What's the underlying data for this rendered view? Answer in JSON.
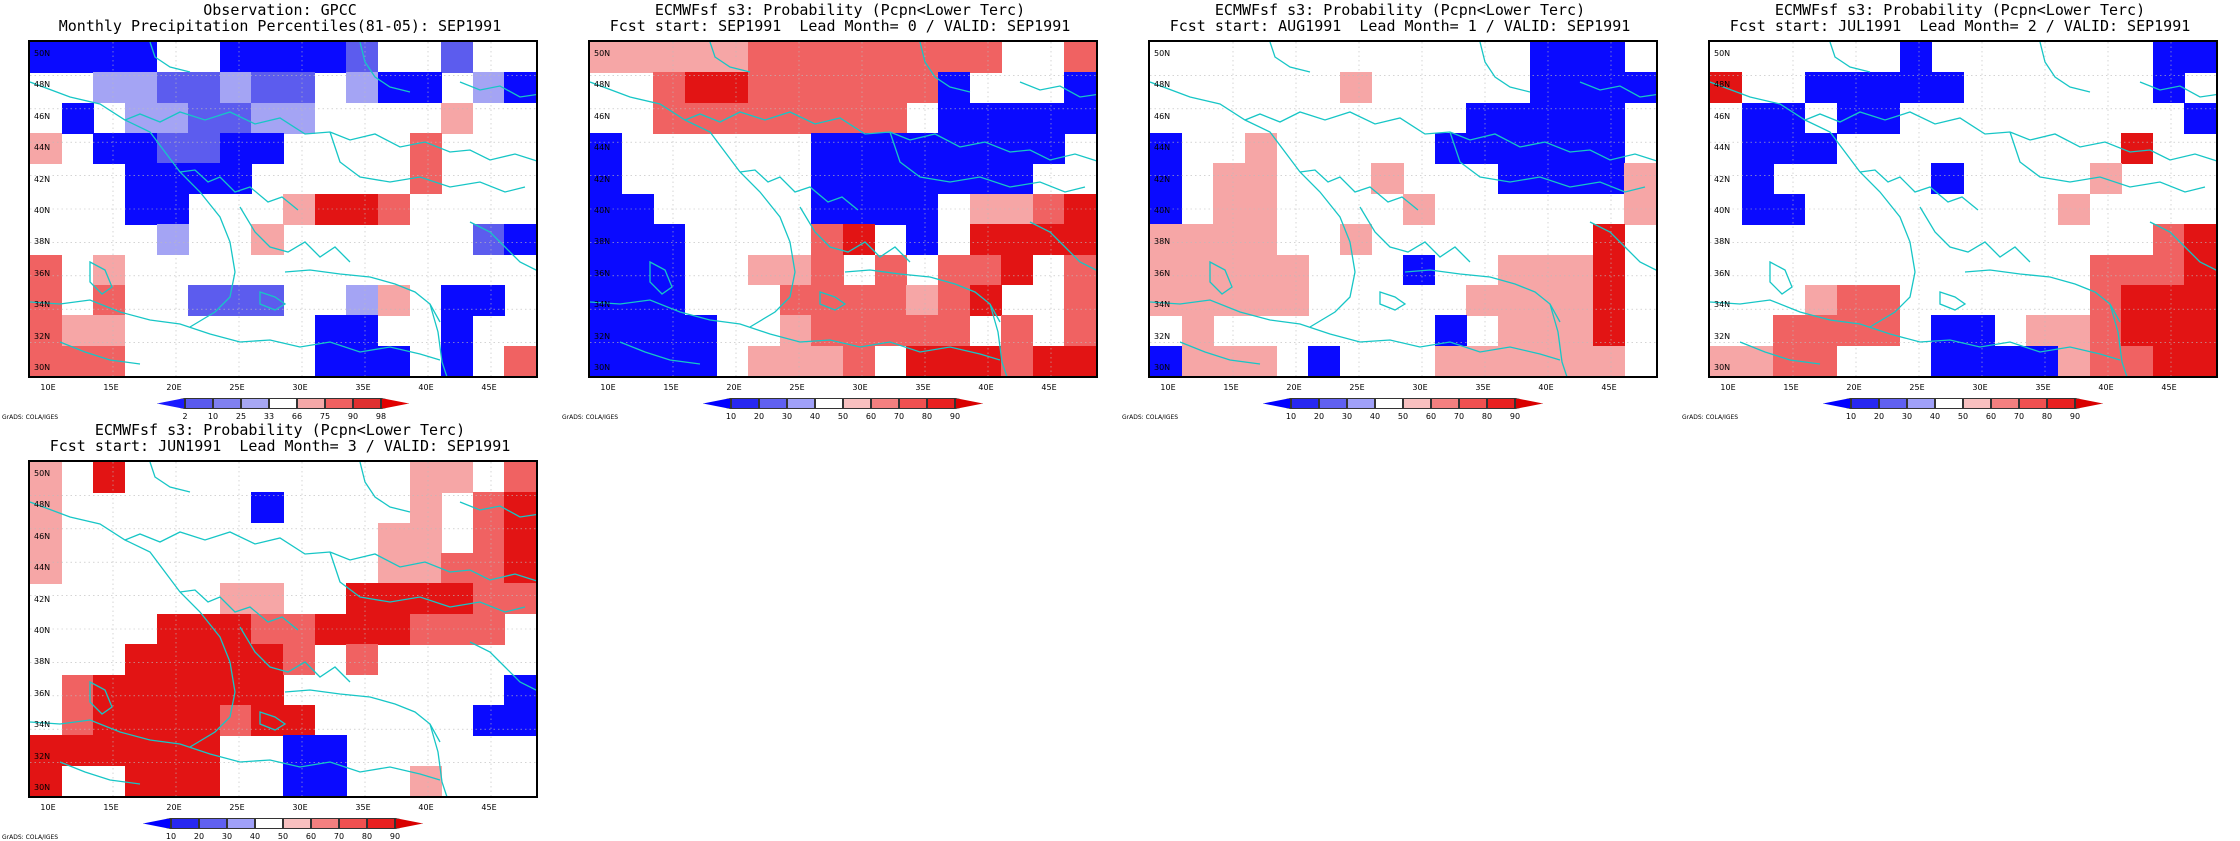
{
  "lat_labels": [
    "50N",
    "48N",
    "46N",
    "44N",
    "42N",
    "40N",
    "38N",
    "36N",
    "34N",
    "32N",
    "30N"
  ],
  "lon_labels": [
    "10E",
    "15E",
    "20E",
    "25E",
    "30E",
    "35E",
    "40E",
    "45E"
  ],
  "credit": "GrADS: COLA/IGES",
  "colors": {
    "coast": "#17c6c6",
    "frame": "#000000"
  },
  "panels": [
    {
      "id": "obs",
      "title1": "Observation: GPCC",
      "title2": "Monthly Precipitation Percentiles(81-05): SEP1991",
      "colorbar": {
        "colors": [
          "#1a1aff",
          "#5a5aee",
          "#8080f0",
          "#a8a8f4",
          "#ffffff",
          "#f4a8a8",
          "#f06060",
          "#e03030",
          "#e00000"
        ],
        "labels": [
          "2",
          "10",
          "25",
          "33",
          "66",
          "75",
          "90",
          "98"
        ]
      },
      "grid": [
        [
          "B",
          "B",
          "B",
          "B",
          "W",
          "W",
          "B",
          "B",
          "B",
          "B",
          "M",
          "W",
          "W",
          "M",
          "W",
          "W"
        ],
        [
          "W",
          "W",
          "L",
          "L",
          "M",
          "M",
          "L",
          "M",
          "M",
          "W",
          "L",
          "B",
          "B",
          "W",
          "L",
          "B"
        ],
        [
          "W",
          "B",
          "W",
          "L",
          "L",
          "M",
          "M",
          "L",
          "L",
          "W",
          "W",
          "W",
          "W",
          "P",
          "W",
          "W"
        ],
        [
          "P",
          "W",
          "B",
          "B",
          "M",
          "M",
          "B",
          "B",
          "W",
          "W",
          "W",
          "W",
          "r",
          "W",
          "W",
          "W"
        ],
        [
          "W",
          "W",
          "W",
          "B",
          "B",
          "B",
          "B",
          "W",
          "W",
          "W",
          "W",
          "W",
          "r",
          "W",
          "W",
          "W"
        ],
        [
          "W",
          "W",
          "W",
          "B",
          "B",
          "W",
          "W",
          "W",
          "P",
          "R",
          "R",
          "r",
          "W",
          "W",
          "W",
          "W"
        ],
        [
          "W",
          "W",
          "W",
          "W",
          "L",
          "W",
          "W",
          "P",
          "W",
          "W",
          "W",
          "W",
          "W",
          "W",
          "M",
          "B"
        ],
        [
          "r",
          "W",
          "P",
          "W",
          "W",
          "W",
          "W",
          "W",
          "W",
          "W",
          "W",
          "W",
          "W",
          "W",
          "W",
          "W"
        ],
        [
          "r",
          "W",
          "r",
          "W",
          "W",
          "M",
          "M",
          "M",
          "W",
          "W",
          "L",
          "P",
          "W",
          "B",
          "B",
          "W"
        ],
        [
          "r",
          "P",
          "P",
          "W",
          "W",
          "W",
          "W",
          "W",
          "W",
          "B",
          "B",
          "W",
          "W",
          "B",
          "W",
          "W"
        ],
        [
          "r",
          "r",
          "r",
          "W",
          "W",
          "W",
          "W",
          "W",
          "W",
          "B",
          "B",
          "B",
          "W",
          "B",
          "W",
          "r"
        ]
      ]
    },
    {
      "id": "lead0",
      "title1": "ECMWFsf s3: Probability (Pcpn<Lower Terc)",
      "title2": "Fcst start: SEP1991  Lead Month= 0 / VALID: SEP1991",
      "colorbar": {
        "colors": [
          "#0000ff",
          "#2828f0",
          "#6060f0",
          "#a0a0f8",
          "#ffffff",
          "#f8c0c0",
          "#f48080",
          "#f05050",
          "#e82020",
          "#d80000"
        ],
        "labels": [
          "10",
          "20",
          "30",
          "40",
          "50",
          "60",
          "70",
          "80",
          "90"
        ]
      },
      "grid": [
        [
          "P",
          "P",
          "P",
          "P",
          "P",
          "r",
          "r",
          "r",
          "r",
          "r",
          "r",
          "r",
          "r",
          "W",
          "W",
          "r"
        ],
        [
          "W",
          "W",
          "r",
          "R",
          "R",
          "r",
          "r",
          "r",
          "r",
          "r",
          "r",
          "B",
          "W",
          "W",
          "W",
          "B"
        ],
        [
          "W",
          "W",
          "r",
          "r",
          "r",
          "r",
          "r",
          "r",
          "r",
          "r",
          "W",
          "B",
          "B",
          "B",
          "B",
          "B"
        ],
        [
          "B",
          "W",
          "W",
          "W",
          "W",
          "W",
          "W",
          "B",
          "B",
          "B",
          "B",
          "B",
          "B",
          "B",
          "B",
          "W"
        ],
        [
          "B",
          "W",
          "W",
          "W",
          "W",
          "W",
          "W",
          "B",
          "B",
          "B",
          "B",
          "B",
          "B",
          "B",
          "W",
          "W"
        ],
        [
          "B",
          "B",
          "W",
          "W",
          "W",
          "W",
          "W",
          "B",
          "B",
          "B",
          "B",
          "W",
          "P",
          "P",
          "r",
          "R"
        ],
        [
          "B",
          "B",
          "B",
          "W",
          "W",
          "W",
          "W",
          "r",
          "R",
          "W",
          "B",
          "W",
          "R",
          "R",
          "R",
          "R"
        ],
        [
          "B",
          "B",
          "B",
          "W",
          "W",
          "P",
          "P",
          "r",
          "W",
          "r",
          "W",
          "r",
          "r",
          "R",
          "W",
          "r"
        ],
        [
          "B",
          "B",
          "B",
          "W",
          "W",
          "W",
          "r",
          "r",
          "r",
          "r",
          "P",
          "r",
          "R",
          "W",
          "W",
          "r"
        ],
        [
          "B",
          "B",
          "B",
          "B",
          "W",
          "W",
          "P",
          "r",
          "r",
          "r",
          "r",
          "r",
          "W",
          "r",
          "W",
          "r"
        ],
        [
          "B",
          "B",
          "B",
          "B",
          "W",
          "P",
          "P",
          "P",
          "r",
          "W",
          "R",
          "R",
          "R",
          "r",
          "R",
          "R"
        ]
      ]
    },
    {
      "id": "lead1",
      "title1": "ECMWFsf s3: Probability (Pcpn<Lower Terc)",
      "title2": "Fcst start: AUG1991  Lead Month= 1 / VALID: SEP1991",
      "colorbar": {
        "colors": [
          "#0000ff",
          "#2828f0",
          "#6060f0",
          "#a0a0f8",
          "#ffffff",
          "#f8c0c0",
          "#f48080",
          "#f05050",
          "#e82020",
          "#d80000"
        ],
        "labels": [
          "10",
          "20",
          "30",
          "40",
          "50",
          "60",
          "70",
          "80",
          "90"
        ]
      },
      "grid": [
        [
          "W",
          "W",
          "W",
          "W",
          "W",
          "W",
          "W",
          "W",
          "W",
          "W",
          "W",
          "W",
          "B",
          "B",
          "B",
          "W"
        ],
        [
          "W",
          "W",
          "W",
          "W",
          "W",
          "W",
          "P",
          "W",
          "W",
          "W",
          "W",
          "W",
          "B",
          "B",
          "B",
          "B"
        ],
        [
          "W",
          "W",
          "W",
          "W",
          "W",
          "W",
          "W",
          "W",
          "W",
          "W",
          "B",
          "B",
          "B",
          "B",
          "B",
          "W"
        ],
        [
          "B",
          "W",
          "W",
          "P",
          "W",
          "W",
          "W",
          "W",
          "W",
          "B",
          "B",
          "B",
          "B",
          "B",
          "B",
          "W"
        ],
        [
          "B",
          "W",
          "P",
          "P",
          "W",
          "W",
          "W",
          "P",
          "W",
          "W",
          "W",
          "B",
          "B",
          "B",
          "B",
          "P"
        ],
        [
          "B",
          "W",
          "P",
          "P",
          "W",
          "W",
          "W",
          "W",
          "P",
          "W",
          "W",
          "W",
          "W",
          "W",
          "W",
          "P"
        ],
        [
          "P",
          "P",
          "P",
          "P",
          "W",
          "W",
          "P",
          "W",
          "W",
          "W",
          "W",
          "W",
          "W",
          "W",
          "R",
          "W"
        ],
        [
          "P",
          "P",
          "P",
          "P",
          "P",
          "W",
          "W",
          "W",
          "B",
          "W",
          "W",
          "P",
          "P",
          "P",
          "R",
          "W"
        ],
        [
          "P",
          "P",
          "P",
          "P",
          "P",
          "W",
          "W",
          "W",
          "W",
          "W",
          "P",
          "P",
          "P",
          "P",
          "R",
          "W"
        ],
        [
          "W",
          "P",
          "W",
          "W",
          "W",
          "W",
          "W",
          "W",
          "W",
          "B",
          "W",
          "P",
          "P",
          "P",
          "R",
          "W"
        ],
        [
          "B",
          "P",
          "P",
          "P",
          "W",
          "B",
          "W",
          "W",
          "W",
          "P",
          "P",
          "P",
          "P",
          "P",
          "P",
          "W"
        ]
      ]
    },
    {
      "id": "lead2",
      "title1": "ECMWFsf s3: Probability (Pcpn<Lower Terc)",
      "title2": "Fcst start: JUL1991  Lead Month= 2 / VALID: SEP1991",
      "colorbar": {
        "colors": [
          "#0000ff",
          "#2828f0",
          "#6060f0",
          "#a0a0f8",
          "#ffffff",
          "#f8c0c0",
          "#f48080",
          "#f05050",
          "#e82020",
          "#d80000"
        ],
        "labels": [
          "10",
          "20",
          "30",
          "40",
          "50",
          "60",
          "70",
          "80",
          "90"
        ]
      },
      "grid": [
        [
          "W",
          "W",
          "W",
          "W",
          "W",
          "W",
          "B",
          "W",
          "W",
          "W",
          "W",
          "W",
          "W",
          "W",
          "B",
          "B"
        ],
        [
          "R",
          "W",
          "W",
          "B",
          "B",
          "B",
          "B",
          "B",
          "W",
          "W",
          "W",
          "W",
          "W",
          "W",
          "B",
          "W"
        ],
        [
          "W",
          "B",
          "B",
          "W",
          "B",
          "B",
          "W",
          "W",
          "W",
          "W",
          "W",
          "W",
          "W",
          "W",
          "W",
          "B"
        ],
        [
          "W",
          "B",
          "B",
          "B",
          "W",
          "W",
          "W",
          "W",
          "W",
          "W",
          "W",
          "W",
          "W",
          "R",
          "W",
          "W"
        ],
        [
          "W",
          "B",
          "W",
          "W",
          "W",
          "W",
          "W",
          "B",
          "W",
          "W",
          "W",
          "W",
          "P",
          "W",
          "W",
          "W"
        ],
        [
          "W",
          "B",
          "B",
          "W",
          "W",
          "W",
          "W",
          "W",
          "W",
          "W",
          "W",
          "P",
          "W",
          "W",
          "W",
          "W"
        ],
        [
          "W",
          "W",
          "W",
          "W",
          "W",
          "W",
          "W",
          "W",
          "W",
          "W",
          "W",
          "W",
          "W",
          "W",
          "r",
          "R"
        ],
        [
          "W",
          "W",
          "W",
          "W",
          "W",
          "W",
          "W",
          "W",
          "W",
          "W",
          "W",
          "W",
          "r",
          "r",
          "r",
          "R"
        ],
        [
          "W",
          "W",
          "W",
          "P",
          "r",
          "r",
          "W",
          "W",
          "W",
          "W",
          "W",
          "W",
          "r",
          "R",
          "R",
          "R"
        ],
        [
          "W",
          "W",
          "r",
          "r",
          "r",
          "r",
          "W",
          "B",
          "B",
          "W",
          "P",
          "P",
          "r",
          "R",
          "R",
          "R"
        ],
        [
          "P",
          "P",
          "r",
          "r",
          "W",
          "W",
          "W",
          "B",
          "B",
          "B",
          "B",
          "P",
          "r",
          "r",
          "R",
          "R"
        ]
      ]
    },
    {
      "id": "lead3",
      "title1": "ECMWFsf s3: Probability (Pcpn<Lower Terc)",
      "title2": "Fcst start: JUN1991  Lead Month= 3 / VALID: SEP1991",
      "colorbar": {
        "colors": [
          "#0000ff",
          "#2828f0",
          "#6060f0",
          "#a0a0f8",
          "#ffffff",
          "#f8c0c0",
          "#f48080",
          "#f05050",
          "#e82020",
          "#d80000"
        ],
        "labels": [
          "10",
          "20",
          "30",
          "40",
          "50",
          "60",
          "70",
          "80",
          "90"
        ]
      },
      "grid": [
        [
          "P",
          "W",
          "R",
          "W",
          "W",
          "W",
          "W",
          "W",
          "W",
          "W",
          "W",
          "W",
          "P",
          "P",
          "W",
          "r"
        ],
        [
          "P",
          "W",
          "W",
          "W",
          "W",
          "W",
          "W",
          "B",
          "W",
          "W",
          "W",
          "W",
          "P",
          "W",
          "r",
          "R"
        ],
        [
          "P",
          "W",
          "W",
          "W",
          "W",
          "W",
          "W",
          "W",
          "W",
          "W",
          "W",
          "P",
          "P",
          "W",
          "r",
          "R"
        ],
        [
          "P",
          "W",
          "W",
          "W",
          "W",
          "W",
          "W",
          "W",
          "W",
          "W",
          "W",
          "P",
          "P",
          "r",
          "r",
          "R"
        ],
        [
          "W",
          "W",
          "W",
          "W",
          "W",
          "W",
          "P",
          "P",
          "W",
          "W",
          "R",
          "R",
          "R",
          "R",
          "r",
          "r"
        ],
        [
          "W",
          "W",
          "W",
          "W",
          "R",
          "R",
          "R",
          "r",
          "r",
          "R",
          "R",
          "R",
          "r",
          "r",
          "r",
          "W"
        ],
        [
          "W",
          "W",
          "W",
          "R",
          "R",
          "R",
          "R",
          "R",
          "r",
          "W",
          "r",
          "W",
          "W",
          "W",
          "W",
          "W"
        ],
        [
          "W",
          "r",
          "R",
          "R",
          "R",
          "R",
          "R",
          "R",
          "W",
          "W",
          "W",
          "W",
          "W",
          "W",
          "W",
          "B"
        ],
        [
          "W",
          "r",
          "R",
          "R",
          "R",
          "R",
          "r",
          "R",
          "R",
          "W",
          "W",
          "W",
          "W",
          "W",
          "B",
          "B"
        ],
        [
          "R",
          "R",
          "R",
          "R",
          "R",
          "R",
          "W",
          "W",
          "B",
          "B",
          "W",
          "W",
          "W",
          "W",
          "W",
          "W"
        ],
        [
          "R",
          "W",
          "W",
          "R",
          "R",
          "R",
          "W",
          "W",
          "B",
          "B",
          "W",
          "W",
          "P",
          "W",
          "W",
          "W"
        ]
      ]
    }
  ]
}
